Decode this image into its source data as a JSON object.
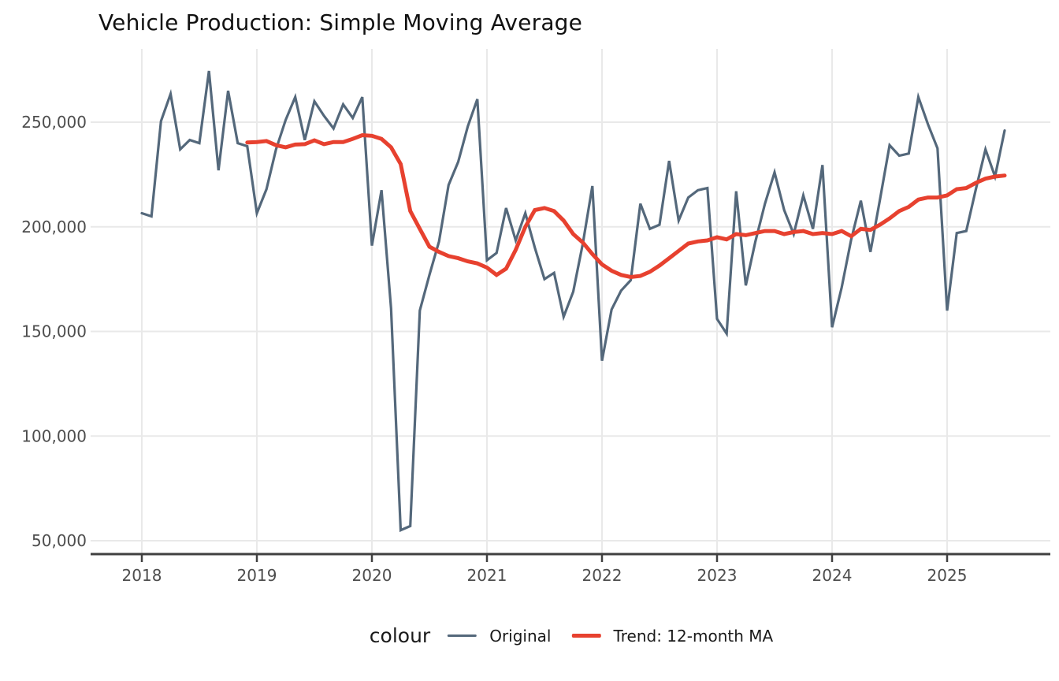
{
  "title": "Vehicle Production: Simple Moving Average",
  "colors": {
    "original": "#54687B",
    "trend": "#E7412F",
    "grid": "#E9E9E9",
    "axis_line": "#404040",
    "tick_label": "#4D4D4D",
    "title": "#111111",
    "background": "#FFFFFF"
  },
  "legend": {
    "title": "colour",
    "items": [
      {
        "label": "Original",
        "color": "#54687B",
        "thickness": 3.2
      },
      {
        "label": "Trend: 12-month MA",
        "color": "#E7412F",
        "thickness": 5
      }
    ]
  },
  "axes": {
    "y": {
      "tick_values": [
        50000,
        100000,
        150000,
        200000,
        250000
      ],
      "tick_labels": [
        "50,000",
        "100,000",
        "150,000",
        "200,000",
        "250,000"
      ]
    },
    "x": {
      "tick_years": [
        2018,
        2019,
        2020,
        2021,
        2022,
        2023,
        2024,
        2025
      ],
      "tick_labels": [
        "2018",
        "2019",
        "2020",
        "2021",
        "2022",
        "2023",
        "2024",
        "2025"
      ]
    }
  },
  "chart_data": {
    "type": "line",
    "title": "Vehicle Production: Simple Moving Average",
    "xlabel": "",
    "ylabel": "",
    "frequency": "monthly",
    "x_start": "2018-01",
    "x_end": "2025-07",
    "ylim": [
      43600,
      285000
    ],
    "grid": true,
    "legend_position": "bottom",
    "series": [
      {
        "name": "Original",
        "color": "#54687B",
        "values": [
          206500,
          205000,
          250500,
          263500,
          237000,
          241500,
          240000,
          274500,
          227000,
          265000,
          240000,
          238500,
          206500,
          218000,
          237000,
          251000,
          262000,
          241500,
          260000,
          253000,
          247000,
          258500,
          252000,
          262000,
          191000,
          217500,
          161000,
          55000,
          57000,
          160000,
          177000,
          193000,
          220000,
          231000,
          248000,
          261000,
          184000,
          187500,
          209000,
          193500,
          206500,
          190000,
          175000,
          178000,
          157000,
          169000,
          192000,
          219500,
          136000,
          160500,
          169500,
          174500,
          211000,
          199000,
          201000,
          231500,
          203000,
          214000,
          217500,
          218500,
          156000,
          149000,
          217000,
          172000,
          193000,
          211000,
          226000,
          208000,
          196500,
          215000,
          199000,
          229500,
          152000,
          171000,
          194000,
          212500,
          188000,
          213000,
          239000,
          234000,
          235000,
          262000,
          249000,
          237500,
          160000,
          197000,
          198000,
          218000,
          237000,
          224000,
          246000
        ]
      },
      {
        "name": "Trend: 12-month MA",
        "color": "#E7412F",
        "values": [
          null,
          null,
          null,
          null,
          null,
          null,
          null,
          null,
          null,
          null,
          null,
          240300,
          240500,
          241000,
          239000,
          238000,
          239300,
          239500,
          241300,
          239500,
          240500,
          240500,
          242000,
          243800,
          243500,
          242000,
          238000,
          230000,
          207500,
          199000,
          190500,
          188000,
          186000,
          185000,
          183500,
          182500,
          180500,
          177000,
          180000,
          189000,
          200000,
          208000,
          209000,
          207500,
          203000,
          196500,
          192500,
          187000,
          182000,
          179000,
          177000,
          176000,
          176500,
          178500,
          181500,
          185000,
          188500,
          192000,
          193000,
          193500,
          195000,
          194000,
          196500,
          196000,
          197000,
          198000,
          198000,
          196500,
          197500,
          198000,
          196500,
          197000,
          196500,
          198000,
          195500,
          199000,
          198500,
          201000,
          204000,
          207500,
          209500,
          213000,
          214000,
          214000,
          215000,
          218000,
          218500,
          221000,
          223000,
          224000,
          224500
        ]
      }
    ]
  }
}
